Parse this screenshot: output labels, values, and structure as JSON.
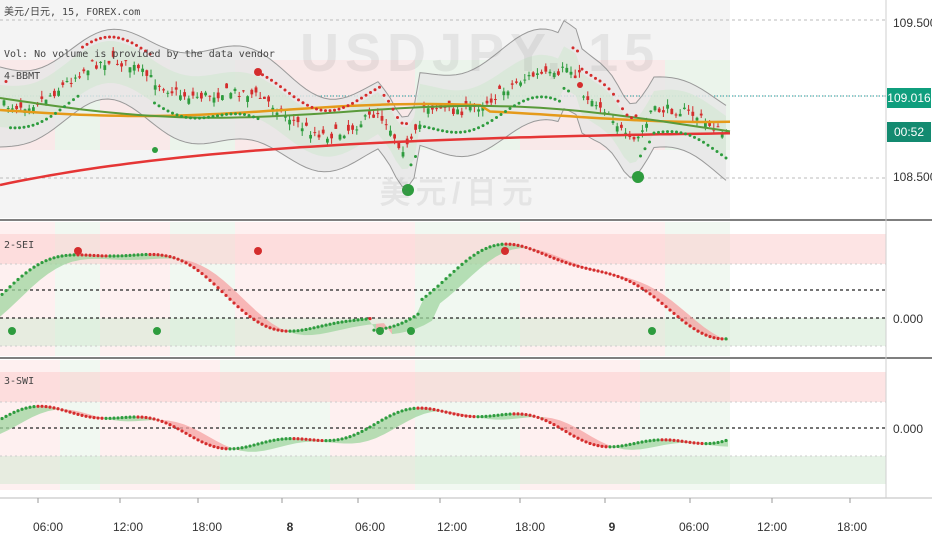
{
  "main_pane": {
    "title_line": "美元/日元, 15, FOREX.com",
    "volume_note": "Vol: No volume is provided by the data vendor",
    "indicator_label": "4-BBMT",
    "watermark_symbol": "USDJPY, 15",
    "watermark_name": "美元/日元",
    "price_axis": [
      "109.500",
      "108.500"
    ],
    "last_price": "109.016",
    "countdown": "00:52"
  },
  "pane2": {
    "label": "2-SEI",
    "zero_label": "0.000"
  },
  "pane3": {
    "label": "3-SWI",
    "zero_label": "0.000"
  },
  "time_axis": [
    "06:00",
    "12:00",
    "18:00",
    "8",
    "06:00",
    "12:00",
    "18:00",
    "9",
    "06:00",
    "12:00",
    "18:00"
  ],
  "colors": {
    "up": "#2e9c3e",
    "down": "#d42d2d",
    "price_badge": "#0f9e7d",
    "countdown_badge": "#138a70",
    "ma_orange": "#e59a1a",
    "ma_green": "#5a9a3a",
    "ma_red": "#e53535"
  }
}
